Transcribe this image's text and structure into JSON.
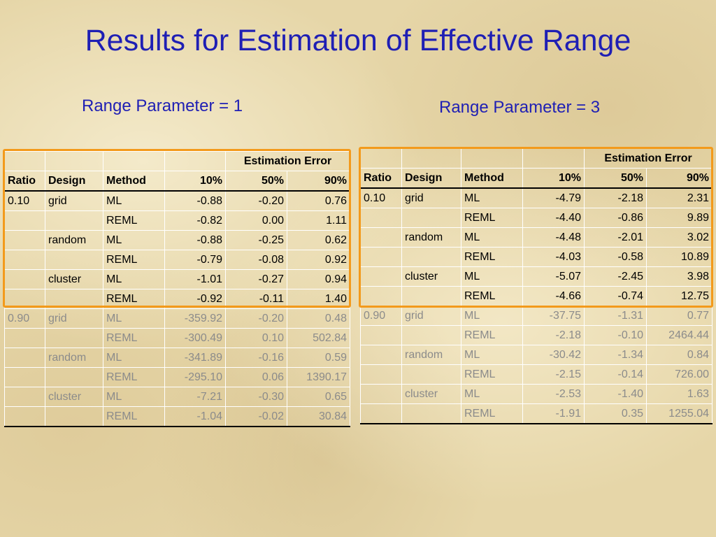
{
  "title": "Results for Estimation of Effective Range",
  "left": {
    "subtitle": "Range Parameter = 1",
    "group_header": "Estimation Error",
    "columns": [
      "Ratio",
      "Design",
      "Method",
      "10%",
      "50%",
      "90%"
    ],
    "rows": [
      [
        "0.10",
        "grid",
        "ML",
        "-0.88",
        "-0.20",
        "0.76"
      ],
      [
        "",
        "",
        "REML",
        "-0.82",
        "0.00",
        "1.11"
      ],
      [
        "",
        "random",
        "ML",
        "-0.88",
        "-0.25",
        "0.62"
      ],
      [
        "",
        "",
        "REML",
        "-0.79",
        "-0.08",
        "0.92"
      ],
      [
        "",
        "cluster",
        "ML",
        "-1.01",
        "-0.27",
        "0.94"
      ],
      [
        "",
        "",
        "REML",
        "-0.92",
        "-0.11",
        "1.40"
      ],
      [
        "0.90",
        "grid",
        "ML",
        "-359.92",
        "-0.20",
        "0.48"
      ],
      [
        "",
        "",
        "REML",
        "-300.49",
        "0.10",
        "502.84"
      ],
      [
        "",
        "random",
        "ML",
        "-341.89",
        "-0.16",
        "0.59"
      ],
      [
        "",
        "",
        "REML",
        "-295.10",
        "0.06",
        "1390.17"
      ],
      [
        "",
        "cluster",
        "ML",
        "-7.21",
        "-0.30",
        "0.65"
      ],
      [
        "",
        "",
        "REML",
        "-1.04",
        "-0.02",
        "30.84"
      ]
    ]
  },
  "right": {
    "subtitle": "Range Parameter = 3",
    "group_header": "Estimation Error",
    "columns": [
      "Ratio",
      "Design",
      "Method",
      "10%",
      "50%",
      "90%"
    ],
    "rows": [
      [
        "0.10",
        "grid",
        "ML",
        "-4.79",
        "-2.18",
        "2.31"
      ],
      [
        "",
        "",
        "REML",
        "-4.40",
        "-0.86",
        "9.89"
      ],
      [
        "",
        "random",
        "ML",
        "-4.48",
        "-2.01",
        "3.02"
      ],
      [
        "",
        "",
        "REML",
        "-4.03",
        "-0.58",
        "10.89"
      ],
      [
        "",
        "cluster",
        "ML",
        "-5.07",
        "-2.45",
        "3.98"
      ],
      [
        "",
        "",
        "REML",
        "-4.66",
        "-0.74",
        "12.75"
      ],
      [
        "0.90",
        "grid",
        "ML",
        "-37.75",
        "-1.31",
        "0.77"
      ],
      [
        "",
        "",
        "REML",
        "-2.18",
        "-0.10",
        "2464.44"
      ],
      [
        "",
        "random",
        "ML",
        "-30.42",
        "-1.34",
        "0.84"
      ],
      [
        "",
        "",
        "REML",
        "-2.15",
        "-0.14",
        "726.00"
      ],
      [
        "",
        "cluster",
        "ML",
        "-2.53",
        "-1.40",
        "1.63"
      ],
      [
        "",
        "",
        "REML",
        "-1.91",
        "0.35",
        "1255.04"
      ]
    ]
  },
  "colors": {
    "title": "#1f1fb4",
    "highlight": "#f39a1b",
    "dim_text": "#8b8b8b"
  }
}
